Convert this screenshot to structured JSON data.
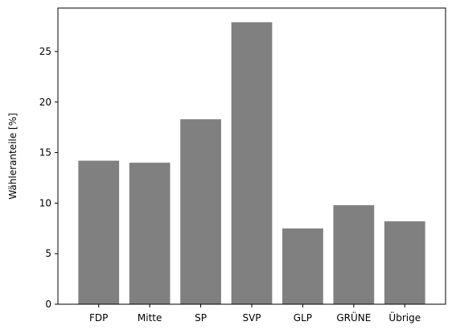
{
  "chart_data": {
    "type": "bar",
    "categories": [
      "FDP",
      "Mitte",
      "SP",
      "SVP",
      "GLP",
      "GRÜNE",
      "Übrige"
    ],
    "values": [
      14.2,
      14.0,
      18.3,
      27.9,
      7.5,
      9.8,
      8.2
    ],
    "ylabel": "Wähleranteile [%]",
    "xlabel": "",
    "ylim": [
      0,
      29.3
    ],
    "yticks": [
      0,
      5,
      10,
      15,
      20,
      25
    ],
    "bar_color": "#808080",
    "grid": false,
    "legend": false
  }
}
